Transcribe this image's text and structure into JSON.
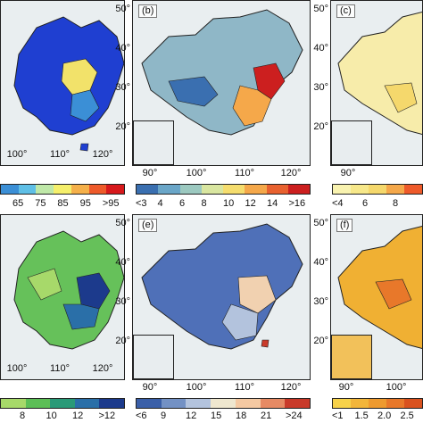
{
  "panels": [
    {
      "id": "a",
      "label": "",
      "lat_labels": [],
      "lon_labels": [
        "100°",
        "110°",
        "120°"
      ],
      "ticks": [
        "65",
        "75",
        "85",
        "95",
        ">95"
      ],
      "colors": [
        "#3b8fd6",
        "#5fbfe6",
        "#bfe8a8",
        "#f5ef6b",
        "#f5b04a",
        "#ee5a2a",
        "#d7191c"
      ],
      "map_fill": "#1f3fd1",
      "hot": "#f2e26a"
    },
    {
      "id": "b",
      "label": "(b)",
      "lat_labels": [
        "50°",
        "40°",
        "30°",
        "20°"
      ],
      "lon_labels": [
        "90°",
        "100°",
        "110°",
        "120°"
      ],
      "ticks": [
        "<3",
        "4",
        "6",
        "8",
        "10",
        "12",
        "14",
        ">16"
      ],
      "colors": [
        "#3a6fb0",
        "#6aa6c8",
        "#9cc9c0",
        "#d9e6a0",
        "#f5dd6e",
        "#f5a84a",
        "#e8612f",
        "#cc1f1f"
      ],
      "map_fill": "#8fb7c7",
      "hot": "#e8612f"
    },
    {
      "id": "c",
      "label": "(c)",
      "lat_labels": [
        "50°",
        "40°",
        "30°",
        "20°"
      ],
      "lon_labels": [
        "90°"
      ],
      "ticks": [
        "<4",
        "6",
        "8"
      ],
      "colors": [
        "#f9f3b0",
        "#f7e88a",
        "#f5d86c",
        "#f5a84a",
        "#ee5a2a"
      ],
      "map_fill": "#f7ecaa",
      "hot": "#f5a84a"
    },
    {
      "id": "d",
      "label": "",
      "lat_labels": [],
      "lon_labels": [
        "100°",
        "110°",
        "120°"
      ],
      "ticks": [
        "8",
        "10",
        "12",
        ">12"
      ],
      "colors": [
        "#a7d96a",
        "#5cbf57",
        "#2a9a78",
        "#2a6fa8",
        "#1c3a8c"
      ],
      "map_fill": "#66c15a",
      "hot": "#1c3a8c"
    },
    {
      "id": "e",
      "label": "(e)",
      "lat_labels": [
        "50°",
        "40°",
        "30°",
        "20°"
      ],
      "lon_labels": [
        "90°",
        "100°",
        "110°",
        "120°"
      ],
      "ticks": [
        "<6",
        "9",
        "12",
        "15",
        "18",
        "21",
        ">24"
      ],
      "colors": [
        "#3a5fa8",
        "#7391c4",
        "#b3c3dd",
        "#efe7cf",
        "#f5c9a2",
        "#e68a64",
        "#c93a2a"
      ],
      "map_fill": "#4f70b8",
      "hot": "#f1d1b0"
    },
    {
      "id": "f",
      "label": "(f)",
      "lat_labels": [
        "50°",
        "40°",
        "30°",
        "20°"
      ],
      "lon_labels": [
        "90°",
        "100°"
      ],
      "ticks": [
        "<1",
        "1.5",
        "2.0",
        "2.5"
      ],
      "colors": [
        "#f7d24a",
        "#f2b53a",
        "#ee9a2f",
        "#e8782a",
        "#d9521f"
      ],
      "map_fill": "#f0b033",
      "hot": "#e8782a"
    }
  ]
}
